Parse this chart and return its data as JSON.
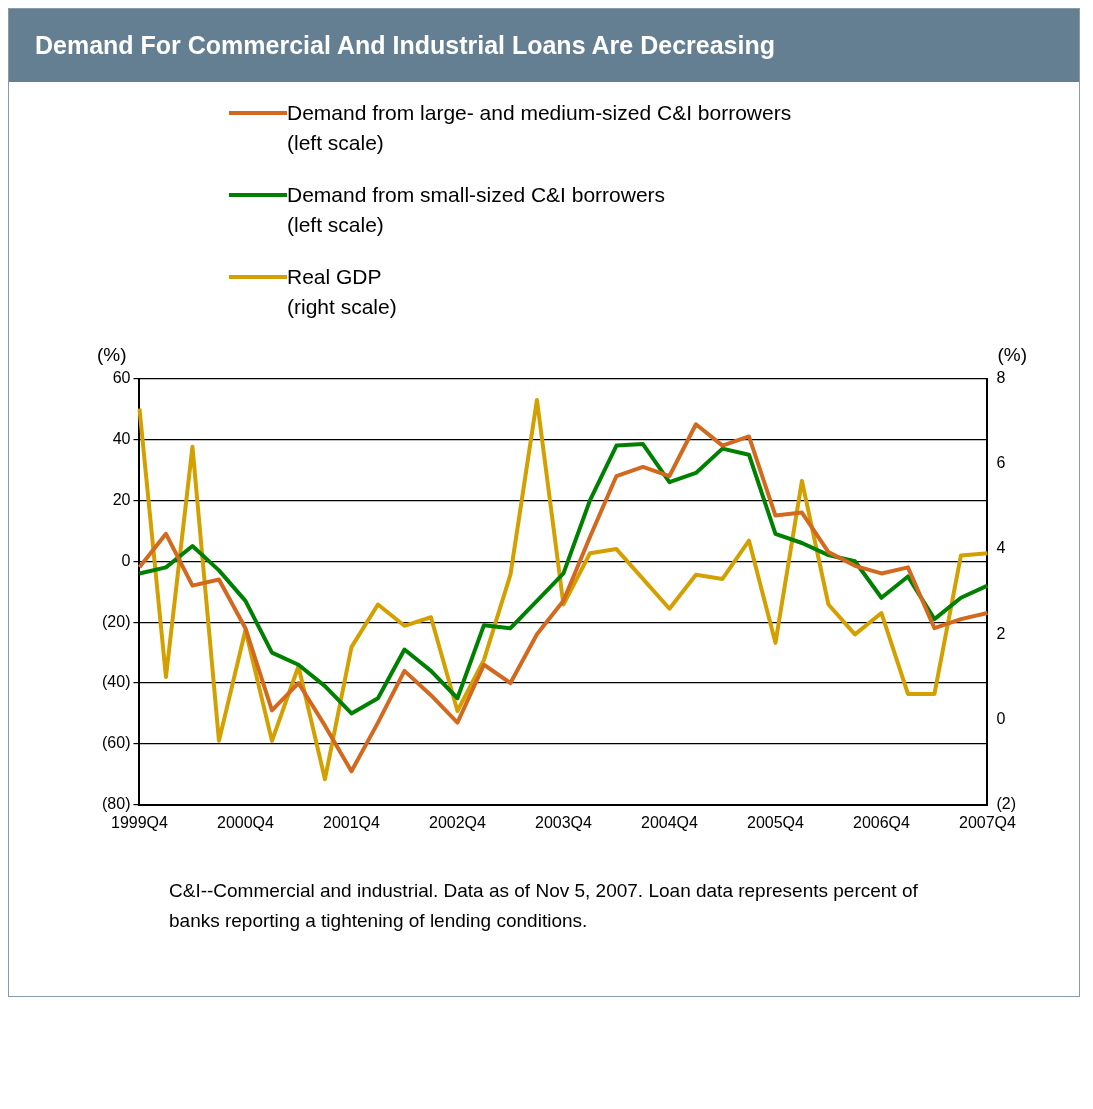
{
  "chart_data": {
    "type": "line",
    "title": "Demand For Commercial And Industrial Loans Are Decreasing",
    "categories": [
      "1999Q4",
      null,
      null,
      null,
      "2000Q4",
      null,
      null,
      null,
      "2001Q4",
      null,
      null,
      null,
      "2002Q4",
      null,
      null,
      null,
      "2003Q4",
      null,
      null,
      null,
      "2004Q4",
      null,
      null,
      null,
      "2005Q4",
      null,
      null,
      null,
      "2006Q4",
      null,
      null,
      null,
      "2007Q4"
    ],
    "series": [
      {
        "name": "Demand from large- and medium-sized C&I borrowers\n(left scale)",
        "color": "#d2691e",
        "values": [
          -2,
          9,
          -8,
          -6,
          -22,
          -49,
          -40,
          -54,
          -69,
          -53,
          -36,
          -44,
          -53,
          -34,
          -40,
          -24,
          -13,
          8,
          28,
          31,
          28,
          45,
          38,
          41,
          15,
          16,
          3,
          -1.5,
          -4,
          -2,
          -22,
          -19,
          -17
        ]
      },
      {
        "name": "Demand from small-sized C&I borrowers\n(left scale)",
        "color": "#008000",
        "values": [
          -4,
          -2,
          5,
          -3,
          -13,
          -30,
          -34,
          -41,
          -50,
          -45,
          -29,
          -36,
          -45,
          -21,
          -22,
          -13,
          -4,
          20,
          38,
          38.5,
          26,
          29,
          37,
          35,
          9,
          6,
          2,
          0,
          -12,
          -5,
          -19,
          -12,
          -8
        ]
      },
      {
        "name": "Real GDP\n(right scale)",
        "color": "#d4a000",
        "axis": "y2",
        "values": [
          7.3,
          1.0,
          6.4,
          -0.5,
          2.1,
          -0.5,
          1.25,
          -1.4,
          1.7,
          2.7,
          2.2,
          2.4,
          0.2,
          1.4,
          3.4,
          7.5,
          2.7,
          3.9,
          4.0,
          3.3,
          2.6,
          3.4,
          3.3,
          4.2,
          1.8,
          5.6,
          2.7,
          2.0,
          2.5,
          0.6,
          0.6,
          3.85,
          3.9
        ]
      }
    ],
    "ylabel": "(%)",
    "y2label": "(%)",
    "ylim": [
      -80,
      60
    ],
    "yticks": [
      {
        "value": -80,
        "label": "(80)"
      },
      {
        "value": -60,
        "label": "(60)"
      },
      {
        "value": -40,
        "label": "(40)"
      },
      {
        "value": -20,
        "label": "(20)"
      },
      0,
      20,
      40,
      60
    ],
    "y2lim": [
      -2,
      8
    ],
    "y2ticks": [
      {
        "value": -2,
        "label": "(2)"
      },
      0,
      2,
      4,
      6,
      8
    ],
    "grid": "y",
    "legend": "top",
    "marker": "none",
    "line_style": "solid",
    "annotations": [
      "C&I--Commercial and industrial. Data as of Nov 5, 2007. Loan data represents percent of banks reporting a tightening of lending conditions."
    ]
  }
}
